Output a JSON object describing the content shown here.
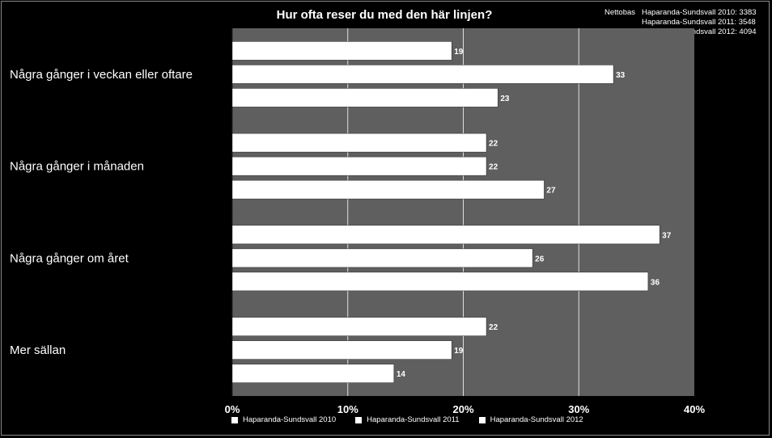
{
  "chart_data": {
    "type": "bar",
    "orientation": "horizontal",
    "title": "Hur ofta reser du med den här linjen?",
    "categories": [
      "Några gånger i veckan eller oftare",
      "Några gånger i månaden",
      "Några gånger om året",
      "Mer sällan"
    ],
    "series": [
      {
        "name": "Haparanda-Sundsvall 2010",
        "values": [
          19,
          22,
          37,
          22
        ]
      },
      {
        "name": "Haparanda-Sundsvall 2011",
        "values": [
          33,
          22,
          26,
          19
        ]
      },
      {
        "name": "Haparanda-Sundsvall 2012",
        "values": [
          23,
          27,
          36,
          14
        ]
      }
    ],
    "xlim": [
      0,
      40
    ],
    "x_ticks": [
      0,
      10,
      20,
      30,
      40
    ],
    "x_tick_labels": [
      "0%",
      "10%",
      "20%",
      "30%",
      "40%"
    ],
    "xlabel": "",
    "ylabel": "",
    "grid": true,
    "legend_position": "bottom",
    "base": {
      "label": "Nettobas",
      "lines": [
        "Haparanda-Sundsvall 2010: 3383",
        "Haparanda-Sundsvall 2011: 3548",
        "Haparanda-Sundsvall 2012: 4094"
      ]
    },
    "colors": {
      "background": "#000000",
      "plot_area": "#5f5f5f",
      "bar": "#ffffff",
      "grid": "#e0e0e0"
    }
  }
}
